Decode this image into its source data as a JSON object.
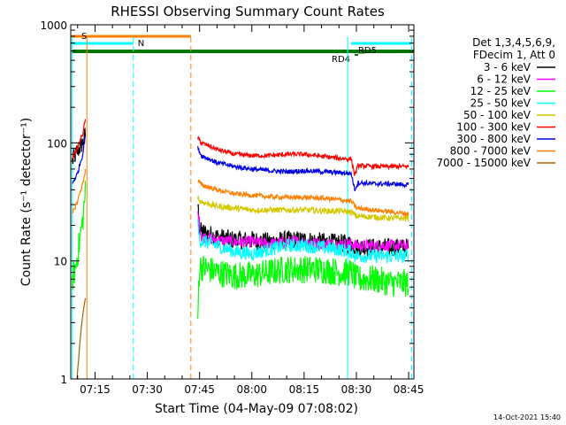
{
  "chart_data": {
    "type": "line",
    "title": "RHESSI Observing Summary Count Rates",
    "xlabel": "Start Time (04-May-09 07:08:02)",
    "ylabel": "Count Rate (s⁻¹ detector⁻¹)",
    "xlim": [
      "07:08:02",
      "08:46:30"
    ],
    "ylim": [
      1,
      1000
    ],
    "yscale": "log",
    "x_ticks": [
      "07:15",
      "07:30",
      "07:45",
      "08:00",
      "08:15",
      "08:30",
      "08:45"
    ],
    "y_ticks": [
      "1",
      "10",
      "100",
      "1000"
    ],
    "legend": {
      "placement": "right",
      "header": [
        "Det 1,3,4,5,6,9,",
        "FDecim 1, Att 0"
      ],
      "entries": [
        {
          "label": "3 - 6 keV",
          "color": "#000000"
        },
        {
          "label": "6 - 12 keV",
          "color": "#ff00ff"
        },
        {
          "label": "12 - 25 keV",
          "color": "#00ff00"
        },
        {
          "label": "25 - 50 keV",
          "color": "#00ffff"
        },
        {
          "label": "50 - 100 keV",
          "color": "#d4c800"
        },
        {
          "label": "100 - 300 keV",
          "color": "#ff0000"
        },
        {
          "label": "300 - 800 keV",
          "color": "#0000e6"
        },
        {
          "label": "800 - 7000 keV",
          "color": "#ff8000"
        },
        {
          "label": "7000 - 15000 keV",
          "color": "#a06400"
        }
      ]
    },
    "flags": [
      {
        "label": "S",
        "color": "#ff8000",
        "start": "07:08:02",
        "end": "07:42:30"
      },
      {
        "label": "N",
        "color": "#00ffff",
        "start": "07:08:02",
        "end": "07:26:00"
      },
      {
        "label": "",
        "color": "#00ffff",
        "start": "08:28:30",
        "end": "08:46:00"
      },
      {
        "label": "",
        "color": "#007800",
        "start": "07:08:02",
        "end": "08:46:30"
      },
      {
        "label": "RD4",
        "color": "#007800",
        "start": "08:29:30",
        "end": "08:30:30"
      },
      {
        "label": "RD5",
        "color": "#007800",
        "start": "08:30:30",
        "end": "08:32:30"
      }
    ],
    "vlines": [
      {
        "time": "07:08:30",
        "color": "#00ffff",
        "style": "solid"
      },
      {
        "time": "07:26:00",
        "color": "#00ffff",
        "style": "dashed"
      },
      {
        "time": "07:12:40",
        "color": "#ff8000",
        "style": "solid"
      },
      {
        "time": "07:42:30",
        "color": "#ff8000",
        "style": "dashed"
      },
      {
        "time": "08:27:30",
        "color": "#00ffff",
        "style": "solid"
      },
      {
        "time": "08:45:50",
        "color": "#00ffff",
        "style": "dashed"
      }
    ],
    "series": [
      {
        "name": "3 - 6 keV",
        "color": "#000000",
        "noise": 0.08,
        "segments": [
          [
            [
              "07:08:30",
              70
            ],
            [
              "07:10:00",
              85
            ],
            [
              "07:11:30",
              100
            ],
            [
              "07:12:20",
              120
            ]
          ],
          [
            [
              "07:44:30",
              30
            ],
            [
              "07:45:00",
              18
            ],
            [
              "07:50:00",
              16
            ],
            [
              "07:55:00",
              15
            ],
            [
              "08:00:00",
              15
            ],
            [
              "08:05:00",
              14.5
            ],
            [
              "08:10:00",
              15
            ],
            [
              "08:15:00",
              15
            ],
            [
              "08:20:00",
              14.5
            ],
            [
              "08:27:00",
              14
            ],
            [
              "08:28:30",
              14
            ],
            [
              "08:30:00",
              13
            ],
            [
              "08:35:00",
              13
            ],
            [
              "08:40:00",
              13
            ],
            [
              "08:45:00",
              13
            ]
          ]
        ]
      },
      {
        "name": "6 - 12 keV",
        "color": "#ff00ff",
        "noise": 0.05,
        "segments": [
          [
            [
              "07:44:30",
              25
            ],
            [
              "07:45:30",
              16
            ],
            [
              "07:50:00",
              15
            ],
            [
              "07:55:00",
              14.5
            ],
            [
              "08:00:00",
              14.5
            ],
            [
              "08:05:00",
              14
            ],
            [
              "08:10:00",
              14.5
            ],
            [
              "08:15:00",
              14.5
            ],
            [
              "08:20:00",
              14
            ],
            [
              "08:28:30",
              14
            ],
            [
              "08:30:00",
              13.5
            ],
            [
              "08:35:00",
              13.5
            ],
            [
              "08:40:00",
              13.5
            ],
            [
              "08:45:00",
              13.5
            ]
          ]
        ]
      },
      {
        "name": "12 - 25 keV",
        "color": "#00ff00",
        "noise": 0.12,
        "segments": [
          [
            [
              "07:08:30",
              7
            ],
            [
              "07:09:30",
              9
            ],
            [
              "07:10:30",
              14
            ],
            [
              "07:11:30",
              22
            ],
            [
              "07:12:20",
              40
            ]
          ],
          [
            [
              "07:44:30",
              3
            ],
            [
              "07:45:00",
              9
            ],
            [
              "07:50:00",
              8
            ],
            [
              "07:55:00",
              7.5
            ],
            [
              "08:00:00",
              7.5
            ],
            [
              "08:05:00",
              8
            ],
            [
              "08:10:00",
              8.5
            ],
            [
              "08:15:00",
              8.5
            ],
            [
              "08:20:00",
              8.5
            ],
            [
              "08:25:00",
              8
            ],
            [
              "08:28:30",
              8
            ],
            [
              "08:30:00",
              7
            ],
            [
              "08:35:00",
              7
            ],
            [
              "08:40:00",
              6.5
            ],
            [
              "08:45:00",
              6.5
            ]
          ]
        ]
      },
      {
        "name": "25 - 50 keV",
        "color": "#00ffff",
        "noise": 0.06,
        "segments": [
          [
            [
              "07:44:30",
              20
            ],
            [
              "07:45:00",
              15
            ],
            [
              "07:50:00",
              13.5
            ],
            [
              "07:55:00",
              12
            ],
            [
              "08:00:00",
              11.5
            ],
            [
              "08:05:00",
              12.5
            ],
            [
              "08:10:00",
              13.5
            ],
            [
              "08:15:00",
              13.5
            ],
            [
              "08:20:00",
              13
            ],
            [
              "08:25:00",
              12.5
            ],
            [
              "08:28:30",
              12
            ],
            [
              "08:30:00",
              11
            ],
            [
              "08:35:00",
              11
            ],
            [
              "08:40:00",
              11
            ],
            [
              "08:45:00",
              11
            ]
          ]
        ]
      },
      {
        "name": "50 - 100 keV",
        "color": "#d4c800",
        "noise": 0.025,
        "segments": [
          [
            [
              "07:44:30",
              35
            ],
            [
              "07:45:00",
              32
            ],
            [
              "07:50:00",
              29
            ],
            [
              "07:55:00",
              28
            ],
            [
              "08:00:00",
              27
            ],
            [
              "08:05:00",
              27
            ],
            [
              "08:10:00",
              27
            ],
            [
              "08:15:00",
              27
            ],
            [
              "08:20:00",
              26.5
            ],
            [
              "08:25:00",
              26.5
            ],
            [
              "08:28:30",
              26
            ],
            [
              "08:30:00",
              24
            ],
            [
              "08:35:00",
              23.5
            ],
            [
              "08:40:00",
              23
            ],
            [
              "08:45:00",
              23
            ]
          ]
        ]
      },
      {
        "name": "100 - 300 keV",
        "color": "#ff0000",
        "noise": 0.02,
        "segments": [
          [
            [
              "07:08:30",
              75
            ],
            [
              "07:10:00",
              90
            ],
            [
              "07:11:30",
              120
            ],
            [
              "07:12:20",
              160
            ]
          ],
          [
            [
              "07:44:30",
              110
            ],
            [
              "07:45:30",
              100
            ],
            [
              "07:50:00",
              88
            ],
            [
              "07:55:00",
              80
            ],
            [
              "08:00:00",
              78
            ],
            [
              "08:05:00",
              78
            ],
            [
              "08:10:00",
              80
            ],
            [
              "08:15:00",
              80
            ],
            [
              "08:20:00",
              77
            ],
            [
              "08:25:00",
              74
            ],
            [
              "08:28:30",
              73
            ],
            [
              "08:29:30",
              53
            ],
            [
              "08:30:30",
              64
            ],
            [
              "08:35:00",
              63
            ],
            [
              "08:40:00",
              63
            ],
            [
              "08:45:00",
              63
            ]
          ]
        ]
      },
      {
        "name": "300 - 800 keV",
        "color": "#0000e6",
        "noise": 0.02,
        "segments": [
          [
            [
              "07:08:30",
              45
            ],
            [
              "07:10:00",
              55
            ],
            [
              "07:11:30",
              80
            ],
            [
              "07:12:20",
              120
            ]
          ],
          [
            [
              "07:44:30",
              90
            ],
            [
              "07:45:30",
              78
            ],
            [
              "07:50:00",
              68
            ],
            [
              "07:55:00",
              63
            ],
            [
              "08:00:00",
              60
            ],
            [
              "08:05:00",
              58
            ],
            [
              "08:10:00",
              57
            ],
            [
              "08:15:00",
              58
            ],
            [
              "08:20:00",
              57
            ],
            [
              "08:25:00",
              56
            ],
            [
              "08:28:30",
              55
            ],
            [
              "08:29:30",
              40
            ],
            [
              "08:30:30",
              46
            ],
            [
              "08:35:00",
              45
            ],
            [
              "08:40:00",
              45
            ],
            [
              "08:45:00",
              44
            ]
          ]
        ]
      },
      {
        "name": "800 - 7000 keV",
        "color": "#ff8000",
        "noise": 0.02,
        "segments": [
          [
            [
              "07:08:30",
              25
            ],
            [
              "07:10:00",
              32
            ],
            [
              "07:11:30",
              45
            ],
            [
              "07:12:20",
              60
            ]
          ],
          [
            [
              "07:44:30",
              48
            ],
            [
              "07:45:30",
              44
            ],
            [
              "07:50:00",
              40
            ],
            [
              "07:55:00",
              37
            ],
            [
              "08:00:00",
              36
            ],
            [
              "08:05:00",
              35
            ],
            [
              "08:10:00",
              34.5
            ],
            [
              "08:15:00",
              34.5
            ],
            [
              "08:20:00",
              34
            ],
            [
              "08:25:00",
              33
            ],
            [
              "08:28:30",
              32
            ],
            [
              "08:30:00",
              28
            ],
            [
              "08:35:00",
              27
            ],
            [
              "08:40:00",
              26
            ],
            [
              "08:45:00",
              25
            ]
          ]
        ]
      },
      {
        "name": "7000 - 15000 keV",
        "color": "#a06400",
        "noise": 0.0,
        "segments": [
          [
            [
              "07:09:50",
              1
            ],
            [
              "07:10:20",
              1.5
            ],
            [
              "07:10:50",
              2.3
            ],
            [
              "07:11:30",
              3.5
            ],
            [
              "07:12:20",
              5
            ]
          ]
        ]
      }
    ]
  },
  "footer": {
    "timestamp": "14-Oct-2021 15:40"
  }
}
